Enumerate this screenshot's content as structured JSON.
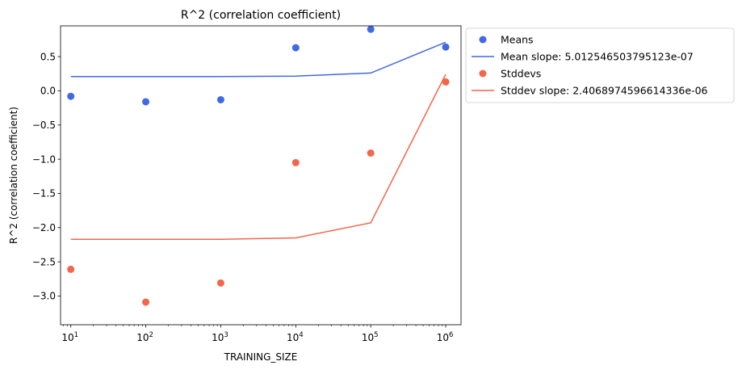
{
  "chart_data": {
    "type": "scatter",
    "title": "R^2 (correlation coefficient)",
    "xlabel": "TRAINING_SIZE",
    "ylabel": "R^2 (correlation coefficient)",
    "xscale": "log",
    "xlim": [
      7.3,
      1600000
    ],
    "ylim": [
      -3.42,
      0.95
    ],
    "xticks": [
      {
        "value": 10,
        "base": "10",
        "exp": "1"
      },
      {
        "value": 100,
        "base": "10",
        "exp": "2"
      },
      {
        "value": 1000,
        "base": "10",
        "exp": "3"
      },
      {
        "value": 10000,
        "base": "10",
        "exp": "4"
      },
      {
        "value": 100000,
        "base": "10",
        "exp": "5"
      },
      {
        "value": 1000000,
        "base": "10",
        "exp": "6"
      }
    ],
    "yticks": [
      {
        "value": 0.5,
        "label": "0.5"
      },
      {
        "value": 0.0,
        "label": "0.0"
      },
      {
        "value": -0.5,
        "label": "−0.5"
      },
      {
        "value": -1.0,
        "label": "−1.0"
      },
      {
        "value": -1.5,
        "label": "−1.5"
      },
      {
        "value": -2.0,
        "label": "−2.0"
      },
      {
        "value": -2.5,
        "label": "−2.5"
      },
      {
        "value": -3.0,
        "label": "−3.0"
      }
    ],
    "grid": false,
    "legend_position": "outside-right",
    "series": [
      {
        "name": "Means",
        "kind": "scatter",
        "color": "#4169e1",
        "x": [
          10,
          100,
          1000,
          10000,
          100000,
          1000000
        ],
        "y": [
          -0.08,
          -0.16,
          -0.13,
          0.63,
          0.9,
          0.64
        ]
      },
      {
        "name": "Mean slope: 5.012546503795123e-07",
        "kind": "line",
        "color": "#4169e1",
        "x": [
          10,
          100,
          1000,
          10000,
          100000,
          1000000
        ],
        "y": [
          0.21,
          0.21,
          0.21,
          0.215,
          0.26,
          0.71
        ]
      },
      {
        "name": "Stddevs",
        "kind": "scatter",
        "color": "#f4664a",
        "x": [
          10,
          100,
          1000,
          10000,
          100000,
          1000000
        ],
        "y": [
          -2.61,
          -3.09,
          -2.81,
          -1.05,
          -0.91,
          0.13
        ]
      },
      {
        "name": "Stddev slope: 2.4068974596614336e-06",
        "kind": "line",
        "color": "#f4664a",
        "x": [
          10,
          100,
          1000,
          10000,
          100000,
          1000000
        ],
        "y": [
          -2.17,
          -2.17,
          -2.17,
          -2.15,
          -1.93,
          0.24
        ]
      }
    ]
  }
}
